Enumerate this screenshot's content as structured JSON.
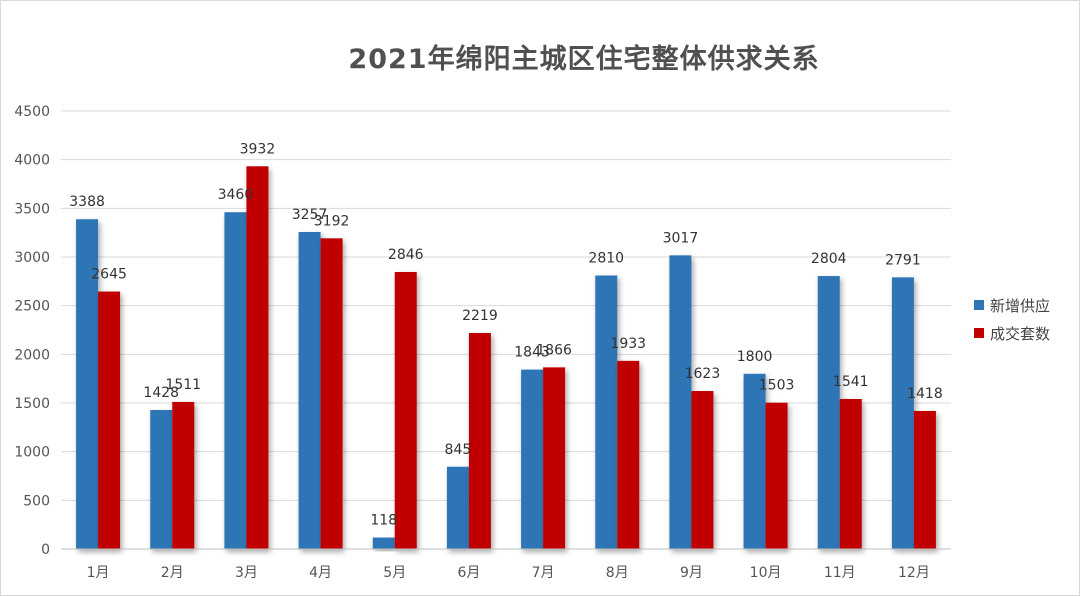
{
  "title": "2021年绵阳主城区住宅整体供求关系",
  "chart_data": {
    "type": "bar",
    "title": "2021年绵阳主城区住宅整体供求关系",
    "categories": [
      "1月",
      "2月",
      "3月",
      "4月",
      "5月",
      "6月",
      "7月",
      "8月",
      "9月",
      "10月",
      "11月",
      "12月"
    ],
    "series": [
      {
        "name": "新增供应",
        "color": "#2e75b6",
        "values": [
          3388,
          1428,
          3460,
          3257,
          118,
          845,
          1843,
          2810,
          3017,
          1800,
          2804,
          2791
        ]
      },
      {
        "name": "成交套数",
        "color": "#c00000",
        "values": [
          2645,
          1511,
          3932,
          3192,
          2846,
          2219,
          1866,
          1933,
          1623,
          1503,
          1541,
          1418
        ]
      }
    ],
    "ylim": [
      0,
      4500
    ],
    "yticks": [
      0,
      500,
      1000,
      1500,
      2000,
      2500,
      3000,
      3500,
      4000,
      4500
    ],
    "grid": true,
    "legend_position": "right"
  }
}
